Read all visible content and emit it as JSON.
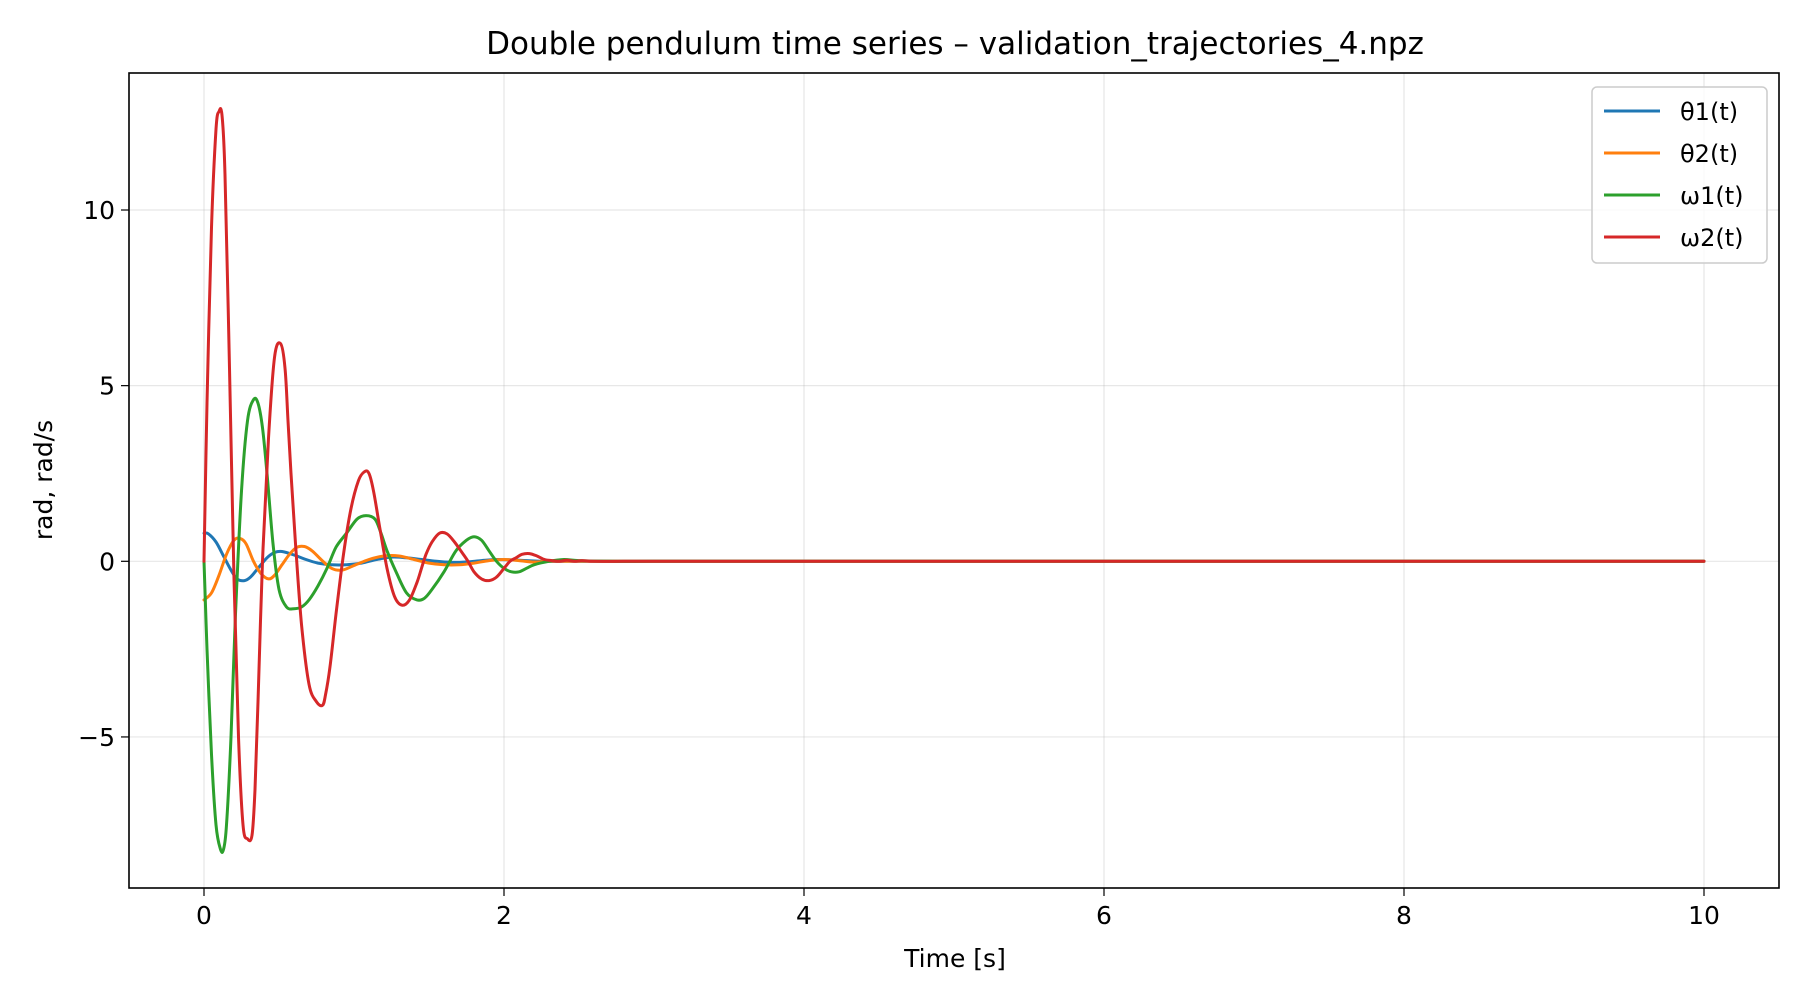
{
  "chart_data": {
    "type": "line",
    "title": "Double pendulum time series – validation_trajectories_4.npz",
    "xlabel": "Time [s]",
    "ylabel": "rad, rad/s",
    "xlim": [
      -0.5,
      10.5
    ],
    "ylim": [
      -9.3,
      13.9
    ],
    "x_ticks": [
      0,
      2,
      4,
      6,
      8,
      10
    ],
    "x_tick_labels": [
      "0",
      "2",
      "4",
      "6",
      "8",
      "10"
    ],
    "y_ticks": [
      -5,
      0,
      5,
      10
    ],
    "y_tick_labels": [
      "−5",
      "0",
      "5",
      "10"
    ],
    "grid": true,
    "legend_position": "top-right",
    "series": [
      {
        "name": "θ1(t)",
        "color": "#1f77b4",
        "x": [
          0,
          0.03,
          0.08,
          0.13,
          0.18,
          0.22,
          0.27,
          0.31,
          0.36,
          0.42,
          0.47,
          0.52,
          0.6,
          0.68,
          0.76,
          0.85,
          0.95,
          1.05,
          1.15,
          1.25,
          1.35,
          1.45,
          1.55,
          1.65,
          1.75,
          1.85,
          1.95,
          2.05,
          2.15,
          2.25,
          2.4,
          2.6,
          3.0,
          4.0,
          6.0,
          8.0,
          10.0
        ],
        "y": [
          0.8,
          0.78,
          0.55,
          0.15,
          -0.25,
          -0.5,
          -0.55,
          -0.45,
          -0.2,
          0.1,
          0.25,
          0.28,
          0.18,
          0.05,
          -0.05,
          -0.1,
          -0.1,
          -0.05,
          0.05,
          0.12,
          0.1,
          0.05,
          0.0,
          -0.03,
          -0.02,
          0.02,
          0.05,
          0.04,
          0.02,
          0.0,
          0.0,
          0.0,
          0.0,
          0.0,
          0.0,
          0.0,
          0.0
        ]
      },
      {
        "name": "θ2(t)",
        "color": "#ff7f0e",
        "x": [
          0,
          0.05,
          0.1,
          0.15,
          0.2,
          0.24,
          0.28,
          0.33,
          0.38,
          0.43,
          0.47,
          0.52,
          0.57,
          0.62,
          0.67,
          0.72,
          0.78,
          0.85,
          0.92,
          1.0,
          1.1,
          1.2,
          1.3,
          1.4,
          1.5,
          1.6,
          1.7,
          1.8,
          1.9,
          2.0,
          2.1,
          2.2,
          2.3,
          2.5,
          3.0,
          4.0,
          6.0,
          8.0,
          10.0
        ],
        "y": [
          -1.1,
          -0.9,
          -0.4,
          0.2,
          0.6,
          0.65,
          0.5,
          0.0,
          -0.35,
          -0.5,
          -0.4,
          -0.1,
          0.2,
          0.4,
          0.42,
          0.3,
          0.05,
          -0.2,
          -0.25,
          -0.12,
          0.05,
          0.15,
          0.15,
          0.05,
          -0.05,
          -0.1,
          -0.1,
          -0.05,
          0.02,
          0.05,
          0.02,
          -0.02,
          0.0,
          0.0,
          0.0,
          0.0,
          0.0,
          0.0,
          0.0
        ]
      },
      {
        "name": "ω1(t)",
        "color": "#2ca02c",
        "x": [
          0,
          0.02,
          0.05,
          0.08,
          0.11,
          0.13,
          0.15,
          0.18,
          0.21,
          0.25,
          0.29,
          0.33,
          0.36,
          0.39,
          0.42,
          0.46,
          0.5,
          0.55,
          0.6,
          0.65,
          0.7,
          0.76,
          0.82,
          0.88,
          0.95,
          1.02,
          1.08,
          1.14,
          1.18,
          1.22,
          1.28,
          1.35,
          1.42,
          1.47,
          1.52,
          1.6,
          1.68,
          1.75,
          1.8,
          1.85,
          1.9,
          1.95,
          2.0,
          2.05,
          2.1,
          2.15,
          2.2,
          2.3,
          2.4,
          2.5,
          2.7,
          3.0,
          4.0,
          6.0,
          8.0,
          10.0
        ],
        "y": [
          0.0,
          -2.5,
          -5.5,
          -7.5,
          -8.2,
          -8.2,
          -7.5,
          -5.0,
          -1.5,
          2.0,
          4.0,
          4.6,
          4.5,
          3.8,
          2.5,
          0.5,
          -0.8,
          -1.3,
          -1.35,
          -1.3,
          -1.1,
          -0.7,
          -0.2,
          0.4,
          0.8,
          1.2,
          1.3,
          1.2,
          0.8,
          0.3,
          -0.3,
          -0.9,
          -1.1,
          -1.05,
          -0.8,
          -0.3,
          0.3,
          0.6,
          0.7,
          0.6,
          0.3,
          0.0,
          -0.2,
          -0.3,
          -0.3,
          -0.2,
          -0.1,
          0.0,
          0.05,
          0.02,
          0.0,
          0.0,
          0.0,
          0.0,
          0.0,
          0.0
        ]
      },
      {
        "name": "ω2(t)",
        "color": "#d62728",
        "x": [
          0,
          0.02,
          0.05,
          0.08,
          0.1,
          0.12,
          0.14,
          0.17,
          0.2,
          0.23,
          0.26,
          0.29,
          0.32,
          0.34,
          0.36,
          0.39,
          0.43,
          0.47,
          0.51,
          0.54,
          0.56,
          0.58,
          0.61,
          0.65,
          0.7,
          0.75,
          0.79,
          0.81,
          0.84,
          0.88,
          0.93,
          0.98,
          1.03,
          1.07,
          1.1,
          1.13,
          1.17,
          1.22,
          1.27,
          1.32,
          1.37,
          1.42,
          1.45,
          1.48,
          1.52,
          1.57,
          1.62,
          1.67,
          1.72,
          1.76,
          1.8,
          1.85,
          1.9,
          1.95,
          2.0,
          2.04,
          2.08,
          2.12,
          2.17,
          2.22,
          2.27,
          2.32,
          2.37,
          2.42,
          2.47,
          2.52,
          2.6,
          2.8,
          3.0,
          3.5,
          4.0,
          5.0,
          6.0,
          7.0,
          8.0,
          9.0,
          10.0
        ],
        "y": [
          0.0,
          4.5,
          9.5,
          12.3,
          12.8,
          12.7,
          11.0,
          5.5,
          -0.5,
          -5.0,
          -7.5,
          -7.9,
          -7.8,
          -6.5,
          -4.0,
          0.0,
          3.5,
          5.8,
          6.2,
          5.5,
          4.0,
          2.5,
          0.5,
          -1.8,
          -3.5,
          -4.0,
          -4.1,
          -3.8,
          -3.0,
          -1.5,
          0.2,
          1.5,
          2.3,
          2.55,
          2.5,
          2.0,
          1.0,
          -0.2,
          -1.0,
          -1.25,
          -1.1,
          -0.6,
          -0.2,
          0.2,
          0.55,
          0.8,
          0.78,
          0.55,
          0.25,
          0.0,
          -0.3,
          -0.5,
          -0.55,
          -0.45,
          -0.2,
          0.0,
          0.1,
          0.2,
          0.22,
          0.15,
          0.05,
          0.02,
          0.0,
          0.03,
          0.0,
          0.02,
          0.0,
          0.0,
          0.0,
          0.0,
          0.0,
          0.0,
          0.0,
          0.0,
          0.0,
          0.0,
          0.0
        ]
      }
    ]
  }
}
